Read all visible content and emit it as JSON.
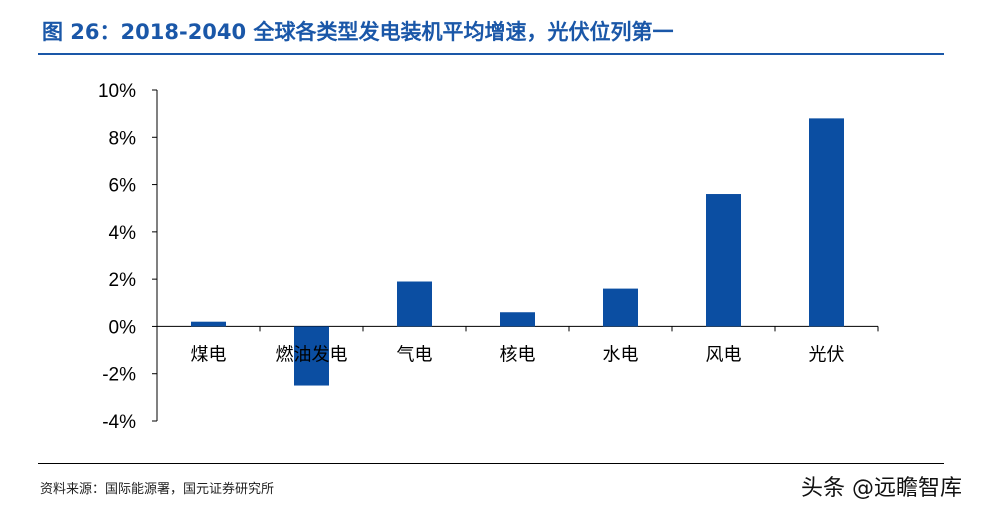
{
  "title": "图 26：2018-2040 全球各类型发电装机平均增速，光伏位列第一",
  "source": "资料来源：国际能源署，国元证券研究所",
  "watermark": "头条 @远瞻智库",
  "colors": {
    "accent": "#1a57a8",
    "bar": "#0b4ea2"
  },
  "chart_data": {
    "type": "bar",
    "categories": [
      "煤电",
      "燃油发电",
      "气电",
      "核电",
      "水电",
      "风电",
      "光伏"
    ],
    "values": [
      0.2,
      -2.5,
      1.9,
      0.6,
      1.6,
      5.6,
      8.8
    ],
    "unit": "%",
    "ylim": [
      -4,
      10
    ],
    "yticks": [
      "10%",
      "8%",
      "6%",
      "4%",
      "2%",
      "0%",
      "-2%",
      "-4%"
    ],
    "grid": false,
    "legend": "none"
  }
}
